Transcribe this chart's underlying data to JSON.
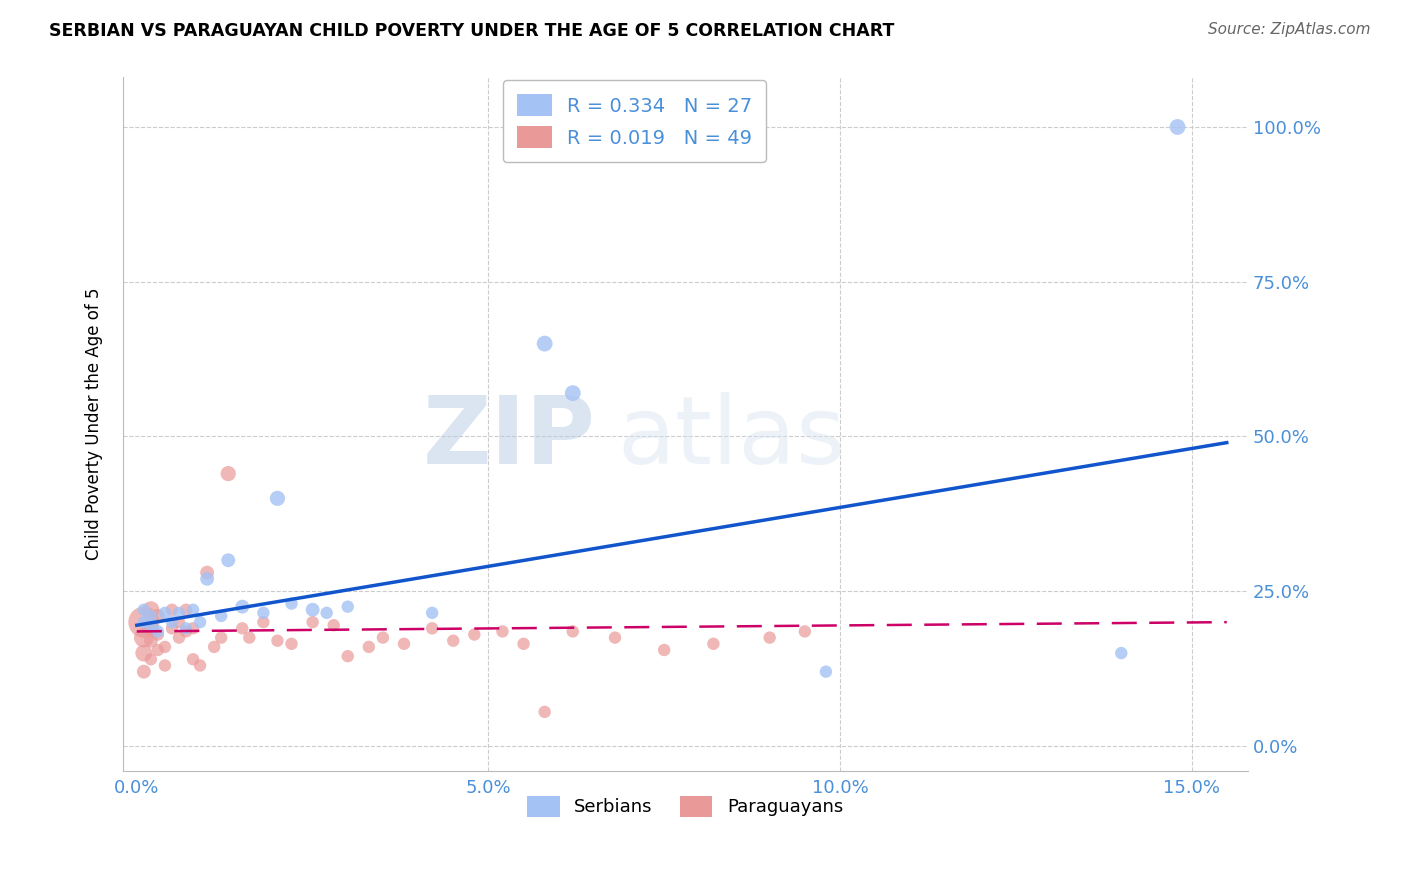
{
  "title": "SERBIAN VS PARAGUAYAN CHILD POVERTY UNDER THE AGE OF 5 CORRELATION CHART",
  "source": "Source: ZipAtlas.com",
  "ylabel": "Child Poverty Under the Age of 5",
  "xlabel_ticks": [
    "0.0%",
    "5.0%",
    "10.0%",
    "15.0%"
  ],
  "xlabel_vals": [
    0.0,
    0.05,
    0.1,
    0.15
  ],
  "ylabel_ticks": [
    "100.0%",
    "75.0%",
    "50.0%",
    "25.0%",
    "0.0%"
  ],
  "ylabel_vals": [
    1.0,
    0.75,
    0.5,
    0.25,
    0.0
  ],
  "xlim": [
    -0.002,
    0.158
  ],
  "ylim": [
    -0.04,
    1.08
  ],
  "serbian_R": 0.334,
  "serbian_N": 27,
  "paraguayan_R": 0.019,
  "paraguayan_N": 49,
  "serbian_color": "#a4c2f4",
  "paraguayan_color": "#ea9999",
  "trend_serbian_color": "#1155cc",
  "trend_paraguayan_color": "#cc0066",
  "watermark_zip": "ZIP",
  "watermark_atlas": "atlas",
  "legend_serbian": "Serbians",
  "legend_paraguayan": "Paraguayans",
  "serbian_x": [
    0.001,
    0.001,
    0.002,
    0.002,
    0.003,
    0.004,
    0.005,
    0.006,
    0.007,
    0.008,
    0.009,
    0.01,
    0.012,
    0.013,
    0.015,
    0.018,
    0.02,
    0.022,
    0.025,
    0.027,
    0.03,
    0.042,
    0.058,
    0.062,
    0.098,
    0.14,
    0.148
  ],
  "serbian_y": [
    0.2,
    0.22,
    0.195,
    0.21,
    0.185,
    0.215,
    0.2,
    0.215,
    0.19,
    0.22,
    0.2,
    0.27,
    0.21,
    0.3,
    0.225,
    0.215,
    0.4,
    0.23,
    0.22,
    0.215,
    0.225,
    0.215,
    0.65,
    0.57,
    0.12,
    0.15,
    1.0
  ],
  "serbian_sizes": [
    80,
    80,
    80,
    80,
    80,
    80,
    80,
    80,
    80,
    80,
    80,
    100,
    80,
    100,
    100,
    80,
    120,
    80,
    100,
    80,
    80,
    80,
    130,
    130,
    80,
    80,
    130
  ],
  "paraguayan_x": [
    0.001,
    0.001,
    0.001,
    0.001,
    0.002,
    0.002,
    0.002,
    0.002,
    0.003,
    0.003,
    0.003,
    0.004,
    0.004,
    0.005,
    0.005,
    0.006,
    0.006,
    0.007,
    0.007,
    0.008,
    0.008,
    0.009,
    0.01,
    0.011,
    0.012,
    0.013,
    0.015,
    0.016,
    0.018,
    0.02,
    0.022,
    0.025,
    0.028,
    0.03,
    0.033,
    0.035,
    0.038,
    0.042,
    0.045,
    0.048,
    0.052,
    0.055,
    0.058,
    0.062,
    0.068,
    0.075,
    0.082,
    0.09,
    0.095
  ],
  "paraguayan_y": [
    0.2,
    0.175,
    0.15,
    0.12,
    0.22,
    0.19,
    0.17,
    0.14,
    0.21,
    0.18,
    0.155,
    0.16,
    0.13,
    0.19,
    0.22,
    0.175,
    0.2,
    0.185,
    0.22,
    0.19,
    0.14,
    0.13,
    0.28,
    0.16,
    0.175,
    0.44,
    0.19,
    0.175,
    0.2,
    0.17,
    0.165,
    0.2,
    0.195,
    0.145,
    0.16,
    0.175,
    0.165,
    0.19,
    0.17,
    0.18,
    0.185,
    0.165,
    0.055,
    0.185,
    0.175,
    0.155,
    0.165,
    0.175,
    0.185
  ],
  "paraguayan_sizes": [
    500,
    200,
    150,
    100,
    150,
    120,
    100,
    80,
    100,
    80,
    80,
    80,
    80,
    80,
    80,
    80,
    80,
    80,
    80,
    80,
    80,
    80,
    100,
    80,
    80,
    120,
    80,
    80,
    80,
    80,
    80,
    80,
    80,
    80,
    80,
    80,
    80,
    80,
    80,
    80,
    80,
    80,
    80,
    80,
    80,
    80,
    80,
    80,
    80
  ],
  "serbian_trend_x0": 0.0,
  "serbian_trend_y0": 0.195,
  "serbian_trend_x1": 0.155,
  "serbian_trend_y1": 0.49,
  "paraguayan_trend_x0": 0.0,
  "paraguayan_trend_y0": 0.185,
  "paraguayan_trend_x1": 0.155,
  "paraguayan_trend_y1": 0.2
}
